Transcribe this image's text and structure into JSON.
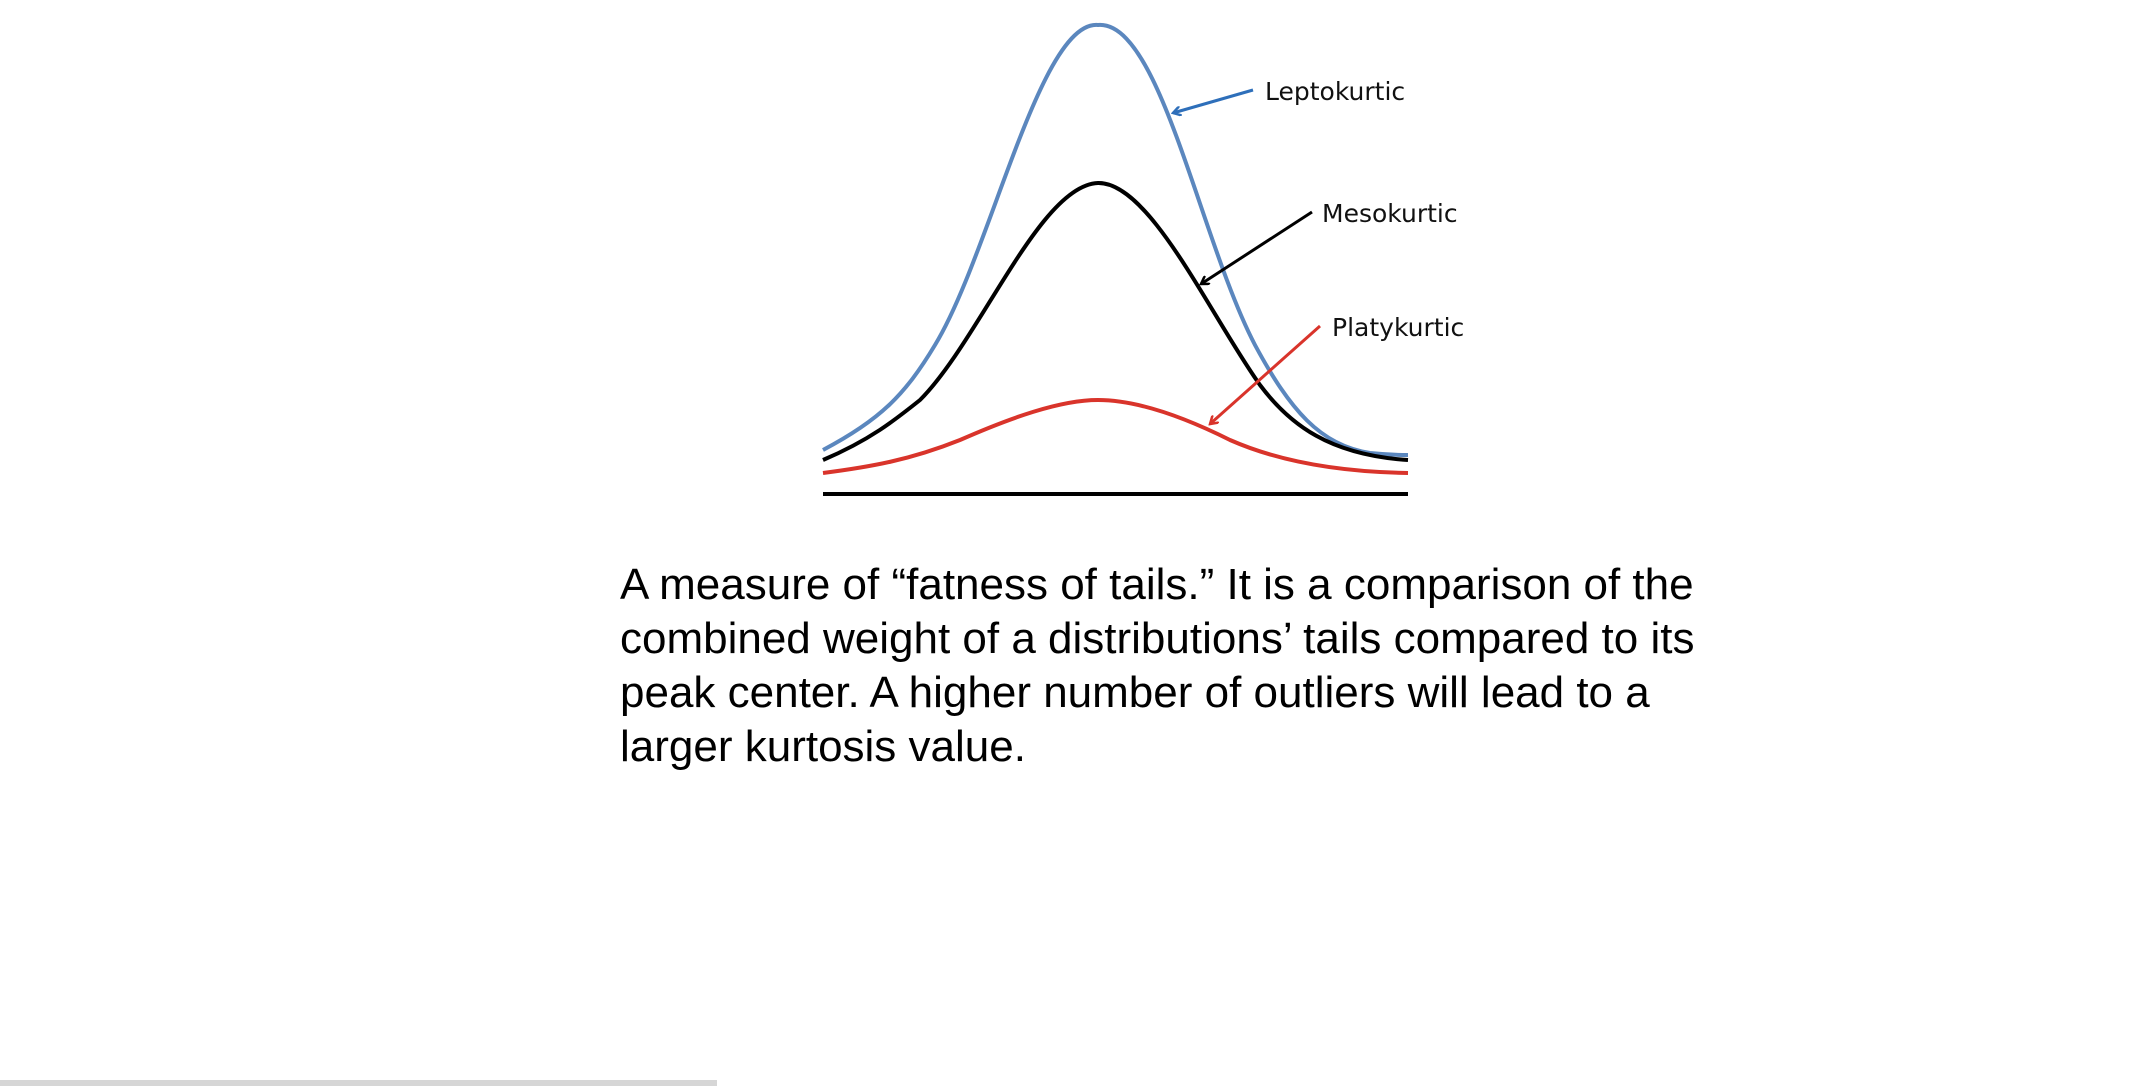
{
  "diagram": {
    "curves": [
      {
        "id": "leptokurtic",
        "label": "Leptokurtic",
        "color": "#5b87be",
        "arrow_color": "#2e6fba"
      },
      {
        "id": "mesokurtic",
        "label": "Mesokurtic",
        "color": "#000000",
        "arrow_color": "#000000"
      },
      {
        "id": "platykurtic",
        "label": "Platykurtic",
        "color": "#d9342b",
        "arrow_color": "#d9342b"
      }
    ],
    "baseline_color": "#000000"
  },
  "description": {
    "lines": [
      "A measure of “fatness of tails.” It is a comparison of the",
      "combined weight of a distributions’ tails compared to its",
      "peak center. A higher number of outliers will lead to a",
      "larger kurtosis value."
    ]
  }
}
